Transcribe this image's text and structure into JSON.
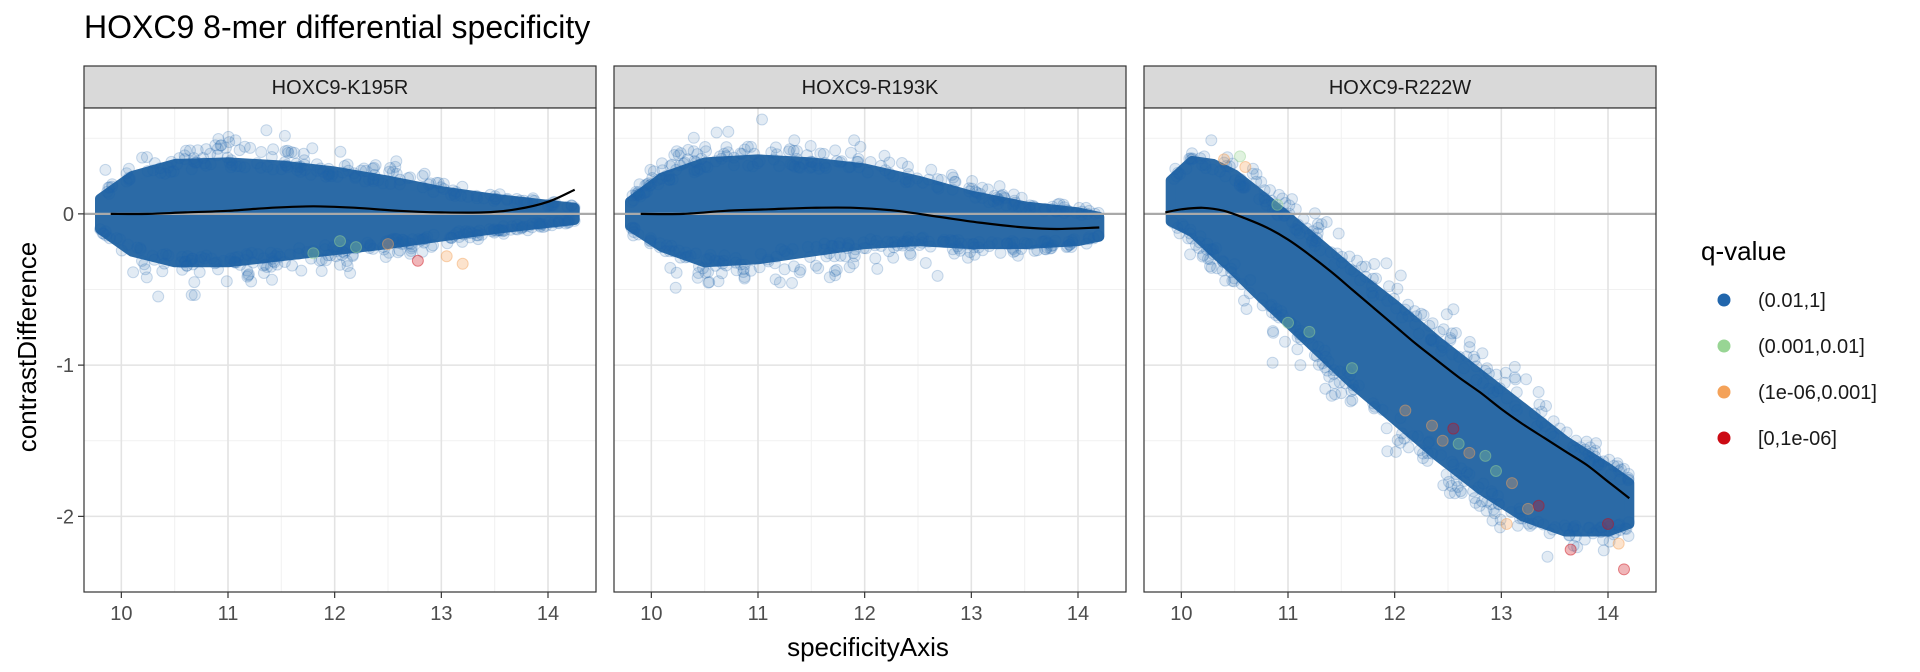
{
  "chart_data": {
    "type": "scatter",
    "title": "HOXC9 8-mer differential specificity",
    "xlabel": "specificityAxis",
    "ylabel": "contrastDifference",
    "xlim": [
      9.65,
      14.45
    ],
    "ylim": [
      -2.5,
      0.7
    ],
    "x_ticks": [
      10,
      11,
      12,
      13,
      14
    ],
    "y_ticks": [
      0,
      -1,
      -2
    ],
    "x_tick_labels": [
      "10",
      "11",
      "12",
      "13",
      "14"
    ],
    "y_tick_labels": [
      "0",
      "-1",
      "-2"
    ],
    "hline": 0,
    "grid": true,
    "legend": {
      "title": "q-value",
      "position": "right",
      "items": [
        {
          "label": "(0.01,1]",
          "color": "#2166ac"
        },
        {
          "label": "(0.001,0.01]",
          "color": "#98d594"
        },
        {
          "label": "(1e-06,0.001]",
          "color": "#f4a259"
        },
        {
          "label": "[0,1e-06]",
          "color": "#cc0a14"
        }
      ]
    },
    "panels": [
      {
        "name": "HOXC9-K195R",
        "x_range": [
          9.8,
          14.25
        ],
        "smooth": {
          "x": [
            9.9,
            10.25,
            10.6,
            11.0,
            11.4,
            11.8,
            12.2,
            12.6,
            13.0,
            13.4,
            13.7,
            14.0,
            14.25
          ],
          "y": [
            0.0,
            0.0,
            0.01,
            0.02,
            0.04,
            0.05,
            0.04,
            0.02,
            0.01,
            0.01,
            0.03,
            0.08,
            0.16
          ]
        },
        "cloud": {
          "x": [
            9.8,
            10.1,
            10.5,
            11.0,
            11.5,
            12.0,
            12.5,
            13.0,
            13.5,
            14.0,
            14.25
          ],
          "upper": [
            0.1,
            0.25,
            0.33,
            0.34,
            0.32,
            0.28,
            0.22,
            0.15,
            0.1,
            0.06,
            0.04
          ],
          "lower": [
            -0.1,
            -0.25,
            -0.32,
            -0.32,
            -0.28,
            -0.24,
            -0.2,
            -0.15,
            -0.1,
            -0.06,
            -0.04
          ]
        },
        "significant_points": [
          {
            "x": 11.8,
            "y": -0.26,
            "q": "(0.001,0.01]"
          },
          {
            "x": 12.2,
            "y": -0.22,
            "q": "(0.001,0.01]"
          },
          {
            "x": 12.05,
            "y": -0.18,
            "q": "(0.001,0.01]"
          },
          {
            "x": 13.05,
            "y": -0.28,
            "q": "(1e-06,0.001]"
          },
          {
            "x": 13.2,
            "y": -0.33,
            "q": "(1e-06,0.001]"
          },
          {
            "x": 12.78,
            "y": -0.31,
            "q": "[0,1e-06]"
          },
          {
            "x": 12.5,
            "y": -0.2,
            "q": "(1e-06,0.001]"
          }
        ]
      },
      {
        "name": "HOXC9-R193K",
        "x_range": [
          9.8,
          14.2
        ],
        "smooth": {
          "x": [
            9.9,
            10.3,
            10.7,
            11.1,
            11.5,
            11.9,
            12.3,
            12.7,
            13.1,
            13.5,
            13.8,
            14.2
          ],
          "y": [
            0.0,
            0.0,
            0.02,
            0.03,
            0.04,
            0.04,
            0.02,
            -0.02,
            -0.06,
            -0.09,
            -0.1,
            -0.09
          ]
        },
        "cloud": {
          "x": [
            9.8,
            10.1,
            10.5,
            11.0,
            11.5,
            12.0,
            12.5,
            13.0,
            13.5,
            14.0,
            14.2
          ],
          "upper": [
            0.08,
            0.24,
            0.34,
            0.36,
            0.34,
            0.3,
            0.22,
            0.12,
            0.05,
            0.01,
            -0.02
          ],
          "lower": [
            -0.08,
            -0.22,
            -0.32,
            -0.3,
            -0.25,
            -0.2,
            -0.18,
            -0.2,
            -0.2,
            -0.18,
            -0.15
          ]
        },
        "significant_points": []
      },
      {
        "name": "HOXC9-R222W",
        "x_range": [
          9.8,
          14.22
        ],
        "smooth": {
          "x": [
            9.85,
            10.0,
            10.2,
            10.4,
            10.6,
            10.8,
            11.0,
            11.2,
            11.4,
            11.6,
            11.8,
            12.0,
            12.2,
            12.4,
            12.6,
            12.8,
            13.0,
            13.2,
            13.4,
            13.6,
            13.8,
            14.0,
            14.2
          ],
          "y": [
            0.01,
            0.03,
            0.04,
            0.02,
            -0.03,
            -0.09,
            -0.17,
            -0.27,
            -0.38,
            -0.5,
            -0.62,
            -0.74,
            -0.86,
            -0.97,
            -1.08,
            -1.18,
            -1.29,
            -1.39,
            -1.48,
            -1.57,
            -1.66,
            -1.77,
            -1.88
          ]
        },
        "cloud": {
          "x": [
            9.9,
            10.1,
            10.3,
            10.5,
            10.7,
            11.0,
            11.3,
            11.6,
            12.0,
            12.4,
            12.8,
            13.2,
            13.6,
            14.0,
            14.2
          ],
          "upper": [
            0.22,
            0.35,
            0.33,
            0.26,
            0.15,
            -0.02,
            -0.2,
            -0.38,
            -0.6,
            -0.84,
            -1.06,
            -1.28,
            -1.5,
            -1.68,
            -1.78
          ],
          "lower": [
            -0.05,
            -0.12,
            -0.25,
            -0.38,
            -0.52,
            -0.72,
            -0.92,
            -1.12,
            -1.36,
            -1.6,
            -1.82,
            -2.0,
            -2.1,
            -2.1,
            -2.05
          ]
        },
        "significant_points": [
          {
            "x": 10.4,
            "y": 0.36,
            "q": "(1e-06,0.001]"
          },
          {
            "x": 10.6,
            "y": 0.31,
            "q": "(1e-06,0.001]"
          },
          {
            "x": 10.55,
            "y": 0.38,
            "q": "(0.001,0.01]"
          },
          {
            "x": 10.9,
            "y": 0.06,
            "q": "(0.001,0.01]"
          },
          {
            "x": 11.0,
            "y": -0.72,
            "q": "(0.001,0.01]"
          },
          {
            "x": 11.2,
            "y": -0.78,
            "q": "(0.001,0.01]"
          },
          {
            "x": 11.6,
            "y": -1.02,
            "q": "(0.001,0.01]"
          },
          {
            "x": 12.1,
            "y": -1.3,
            "q": "(1e-06,0.001]"
          },
          {
            "x": 12.35,
            "y": -1.4,
            "q": "(1e-06,0.001]"
          },
          {
            "x": 12.45,
            "y": -1.5,
            "q": "(1e-06,0.001]"
          },
          {
            "x": 12.6,
            "y": -1.52,
            "q": "(0.001,0.01]"
          },
          {
            "x": 12.7,
            "y": -1.58,
            "q": "(1e-06,0.001]"
          },
          {
            "x": 12.85,
            "y": -1.6,
            "q": "(0.001,0.01]"
          },
          {
            "x": 12.95,
            "y": -1.7,
            "q": "(0.001,0.01]"
          },
          {
            "x": 12.55,
            "y": -1.42,
            "q": "[0,1e-06]"
          },
          {
            "x": 13.1,
            "y": -1.78,
            "q": "(1e-06,0.001]"
          },
          {
            "x": 13.25,
            "y": -1.95,
            "q": "(1e-06,0.001]"
          },
          {
            "x": 13.35,
            "y": -1.93,
            "q": "[0,1e-06]"
          },
          {
            "x": 13.05,
            "y": -2.05,
            "q": "(1e-06,0.001]"
          },
          {
            "x": 13.65,
            "y": -2.22,
            "q": "[0,1e-06]"
          },
          {
            "x": 14.0,
            "y": -2.05,
            "q": "[0,1e-06]"
          },
          {
            "x": 14.1,
            "y": -2.18,
            "q": "(1e-06,0.001]"
          },
          {
            "x": 14.15,
            "y": -2.35,
            "q": "[0,1e-06]"
          }
        ]
      }
    ]
  }
}
